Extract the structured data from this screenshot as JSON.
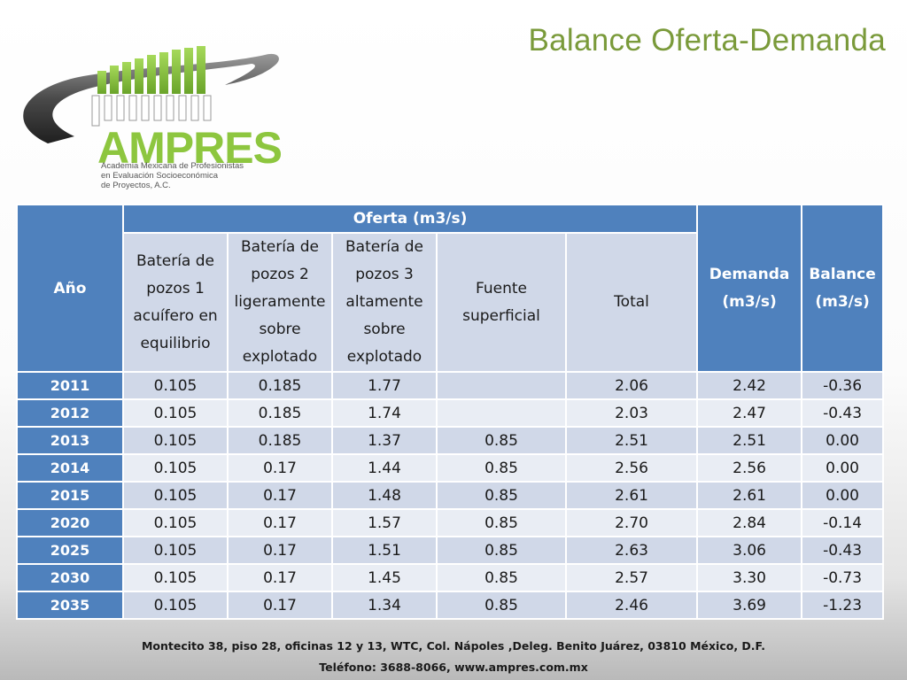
{
  "title": "Balance Oferta-Demanda",
  "logo": {
    "wordmark": "AMPRES",
    "subtitle_lines": [
      "Academia Mexicana de Profesionistas",
      "en Evaluación Socioeconómica",
      "de Proyectos, A.C."
    ]
  },
  "table": {
    "headers": {
      "year": "Año",
      "oferta": "Oferta (m3/s)",
      "sub": [
        "Batería de pozos 1 acuífero en equilibrio",
        "Batería de pozos 2 ligeramente sobre explotado",
        "Batería de pozos 3 altamente sobre explotado",
        "Fuente superficial",
        "Total"
      ],
      "demanda": "Demanda (m3/s)",
      "balance": "Balance (m3/s)"
    },
    "rows": [
      {
        "year": "2011",
        "b1": "0.105",
        "b2": "0.185",
        "b3": "1.77",
        "fuente": "",
        "total": "2.06",
        "demanda": "2.42",
        "balance": "-0.36"
      },
      {
        "year": "2012",
        "b1": "0.105",
        "b2": "0.185",
        "b3": "1.74",
        "fuente": "",
        "total": "2.03",
        "demanda": "2.47",
        "balance": "-0.43"
      },
      {
        "year": "2013",
        "b1": "0.105",
        "b2": "0.185",
        "b3": "1.37",
        "fuente": "0.85",
        "total": "2.51",
        "demanda": "2.51",
        "balance": "0.00"
      },
      {
        "year": "2014",
        "b1": "0.105",
        "b2": "0.17",
        "b3": "1.44",
        "fuente": "0.85",
        "total": "2.56",
        "demanda": "2.56",
        "balance": "0.00"
      },
      {
        "year": "2015",
        "b1": "0.105",
        "b2": "0.17",
        "b3": "1.48",
        "fuente": "0.85",
        "total": "2.61",
        "demanda": "2.61",
        "balance": "0.00"
      },
      {
        "year": "2020",
        "b1": "0.105",
        "b2": "0.17",
        "b3": "1.57",
        "fuente": "0.85",
        "total": "2.70",
        "demanda": "2.84",
        "balance": "-0.14"
      },
      {
        "year": "2025",
        "b1": "0.105",
        "b2": "0.17",
        "b3": "1.51",
        "fuente": "0.85",
        "total": "2.63",
        "demanda": "3.06",
        "balance": "-0.43"
      },
      {
        "year": "2030",
        "b1": "0.105",
        "b2": "0.17",
        "b3": "1.45",
        "fuente": "0.85",
        "total": "2.57",
        "demanda": "3.30",
        "balance": "-0.73"
      },
      {
        "year": "2035",
        "b1": "0.105",
        "b2": "0.17",
        "b3": "1.34",
        "fuente": "0.85",
        "total": "2.46",
        "demanda": "3.69",
        "balance": "-1.23"
      }
    ]
  },
  "footer": {
    "address": "Montecito 38, piso 28, oficinas 12 y 13, WTC, Col. Nápoles ,Deleg. Benito Juárez, 03810 México, D.F.",
    "contact": "Teléfono: 3688-8066, www.ampres.com.mx"
  },
  "colors": {
    "title": "#7a9a3a",
    "header_dark": "#4f81bd",
    "header_light": "#d0d8e8",
    "row_alt": "#e9edf4",
    "logo_green": "#8dc63f"
  }
}
